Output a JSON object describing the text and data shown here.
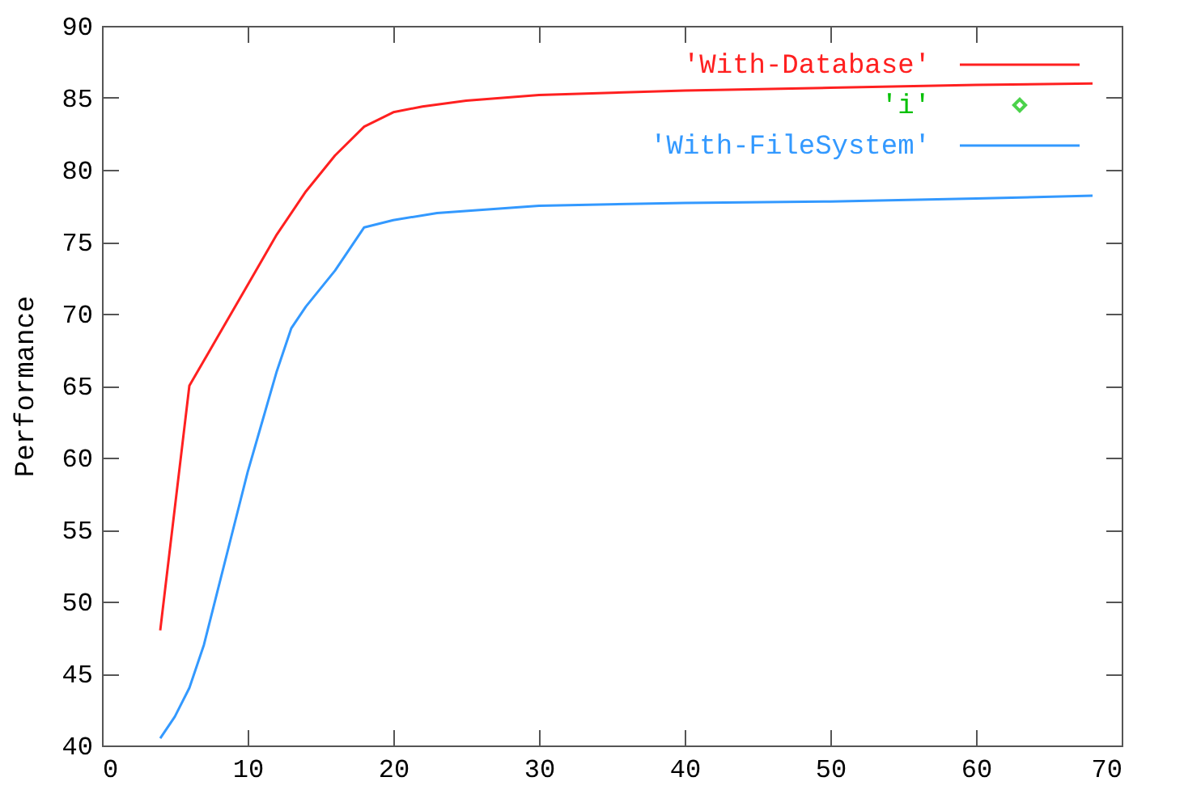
{
  "chart_data": {
    "type": "line",
    "ylabel": "Performance",
    "xlim": [
      0,
      70
    ],
    "xticks": [
      0,
      10,
      20,
      30,
      40,
      50,
      60,
      70
    ],
    "ylim": [
      40,
      90
    ],
    "yticks": [
      40,
      45,
      50,
      55,
      60,
      65,
      70,
      75,
      80,
      85,
      90
    ],
    "legend": "top right",
    "grid": false,
    "series": [
      {
        "name": "'With-Database'",
        "color": "#ff2020",
        "x": [
          4,
          6,
          8,
          10,
          12,
          14,
          16,
          18,
          20,
          22,
          25,
          30,
          40,
          50,
          60,
          68
        ],
        "values": [
          48,
          65,
          68.5,
          72,
          75.5,
          78.5,
          81,
          83,
          84,
          84.4,
          84.8,
          85.2,
          85.5,
          85.7,
          85.9,
          86
        ]
      },
      {
        "name": "'i'",
        "color": "#00c000",
        "type": "scatter",
        "marker": "diamond"
      },
      {
        "name": "'With-FileSystem'",
        "color": "#3399ff",
        "x": [
          4,
          5,
          6,
          7,
          8,
          9,
          10,
          11,
          12,
          13,
          14,
          16,
          18,
          20,
          23,
          30,
          40,
          50,
          60,
          68
        ],
        "values": [
          40.5,
          42,
          44,
          47,
          51,
          55,
          59,
          62.5,
          66,
          69,
          70.5,
          73,
          76,
          76.5,
          77,
          77.5,
          77.7,
          77.8,
          78,
          78.2
        ]
      }
    ]
  }
}
